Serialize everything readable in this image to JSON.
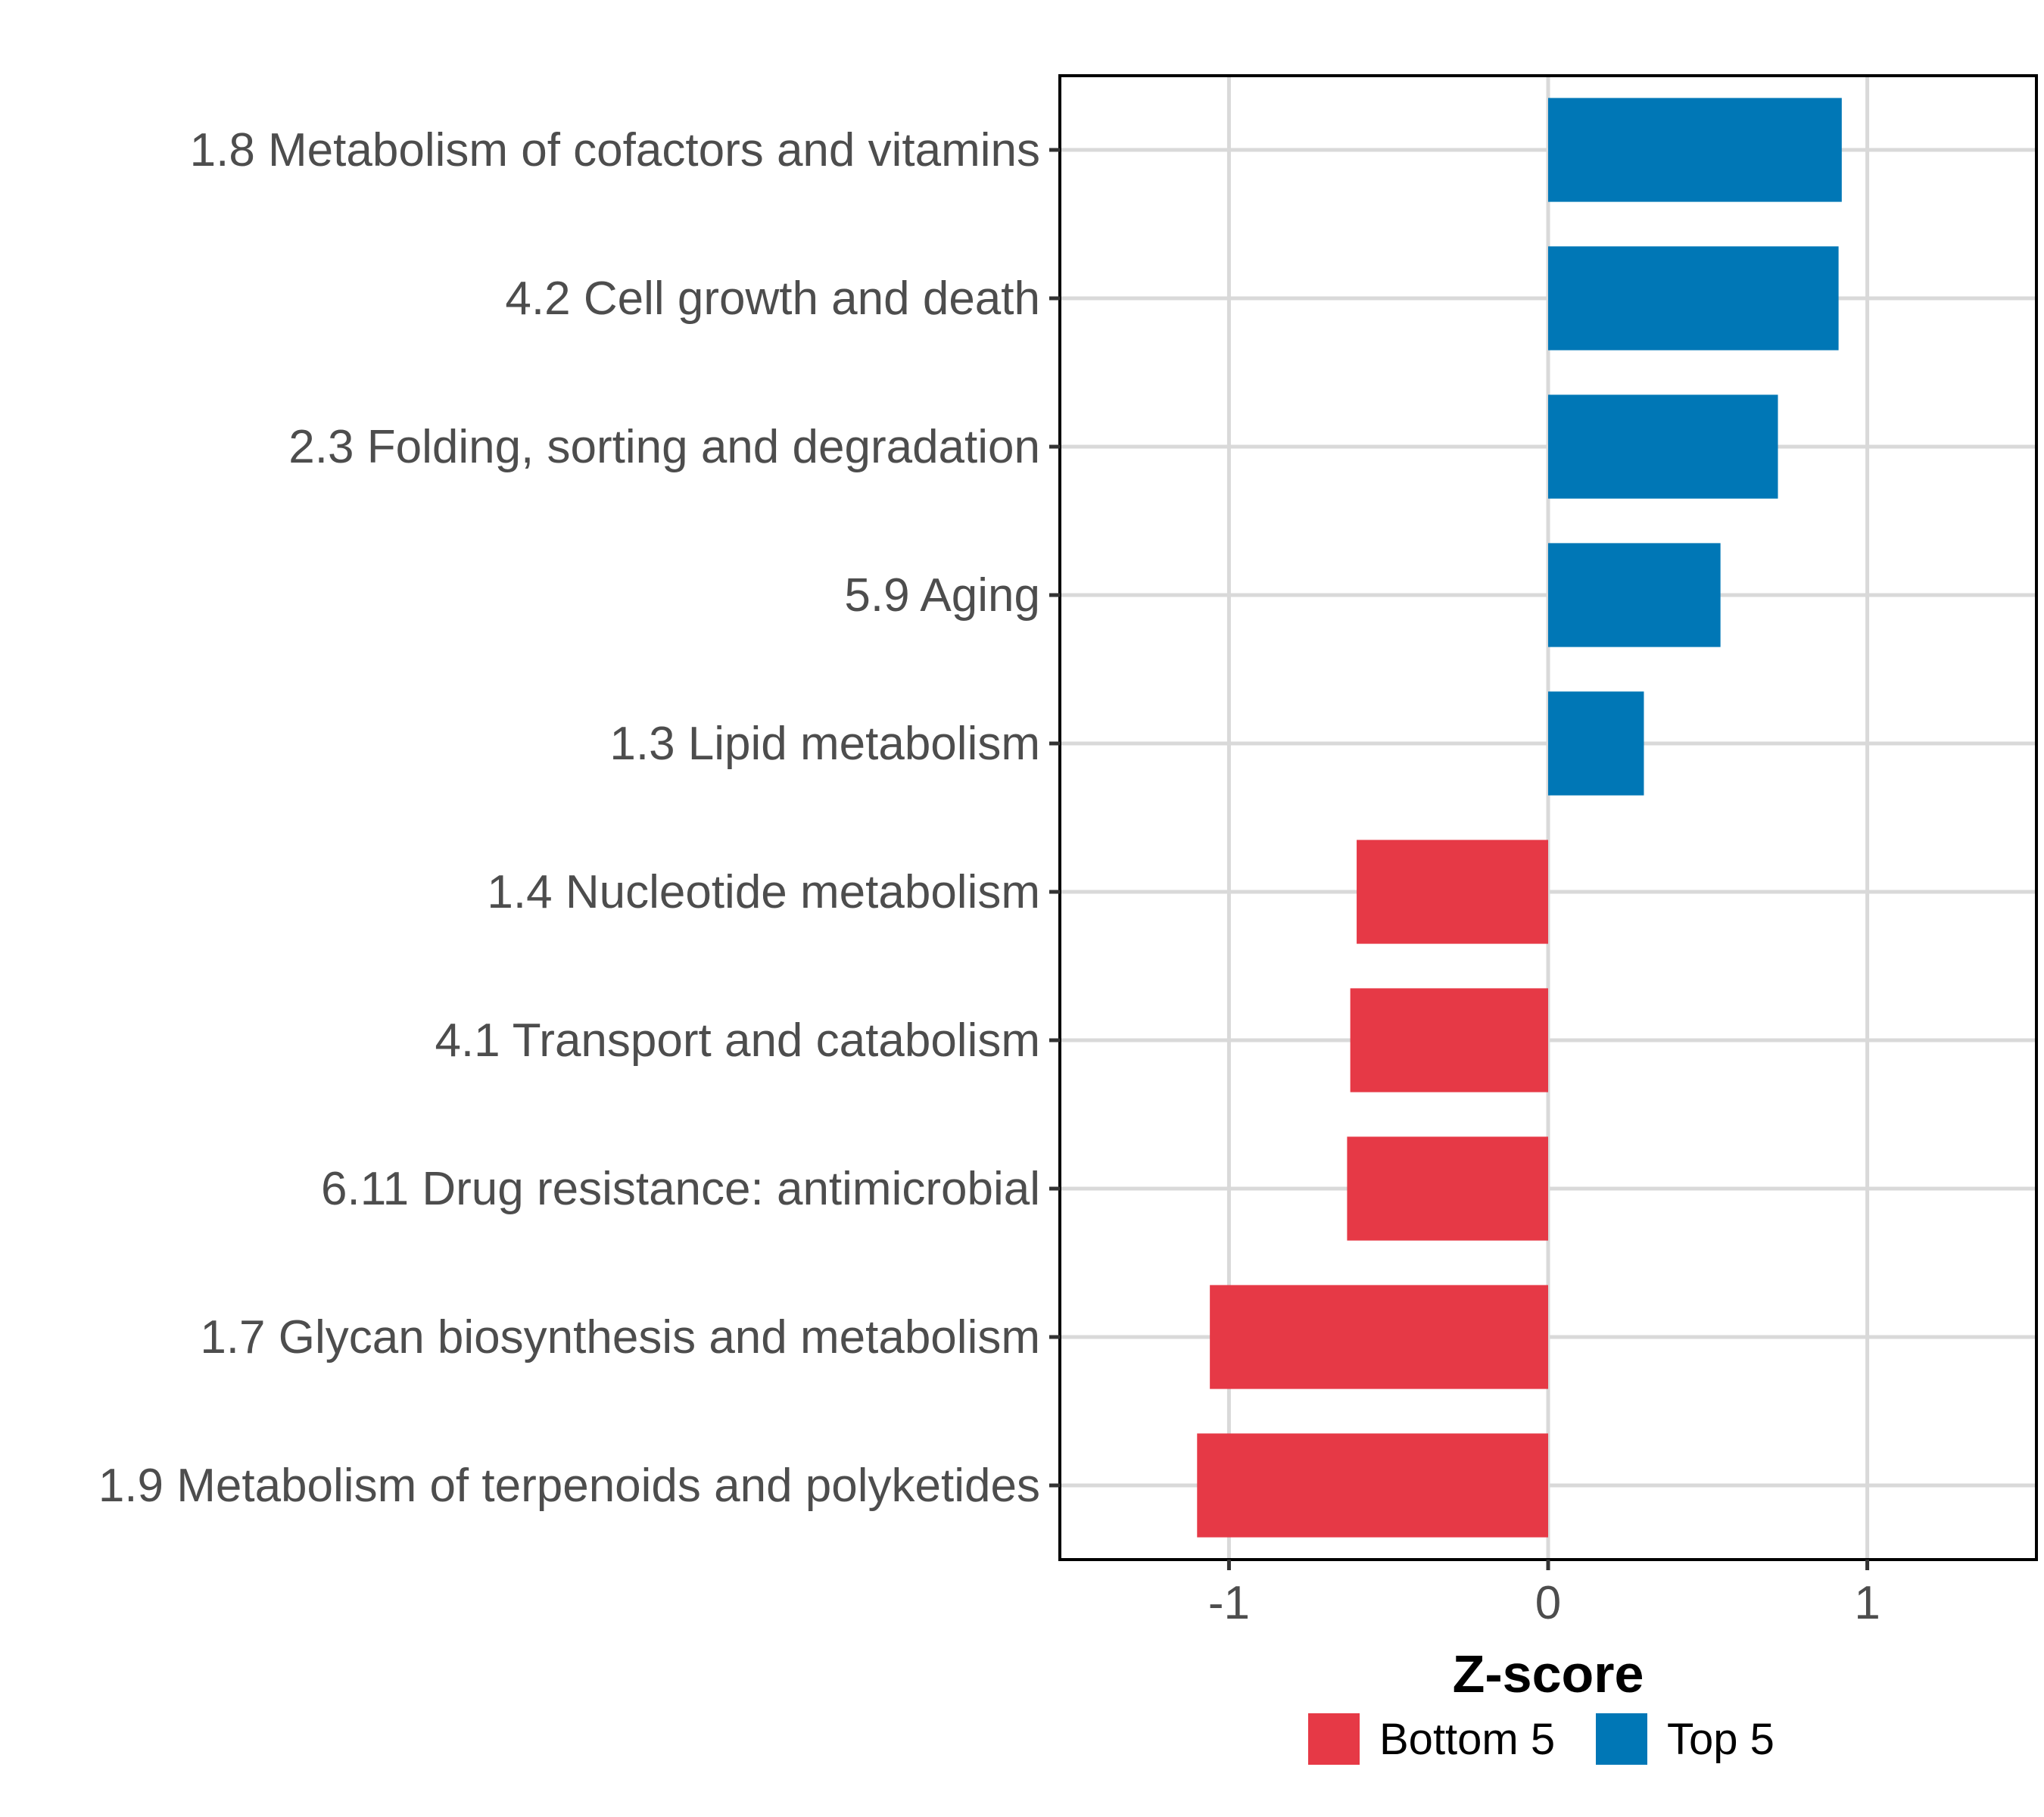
{
  "chart_data": {
    "type": "bar",
    "orientation": "horizontal",
    "categories": [
      "1.8 Metabolism of cofactors and vitamins",
      "4.2 Cell growth and death",
      "2.3 Folding, sorting and degradation",
      "5.9 Aging",
      "1.3 Lipid metabolism",
      "1.4 Nucleotide metabolism",
      "4.1 Transport and catabolism",
      "6.11 Drug resistance: antimicrobial",
      "1.7 Glycan biosynthesis and metabolism",
      "1.9 Metabolism of terpenoids and polyketides"
    ],
    "values": [
      0.92,
      0.91,
      0.72,
      0.54,
      0.3,
      -0.6,
      -0.62,
      -0.63,
      -1.06,
      -1.1
    ],
    "groups": [
      "Top 5",
      "Top 5",
      "Top 5",
      "Top 5",
      "Top 5",
      "Bottom 5",
      "Bottom 5",
      "Bottom 5",
      "Bottom 5",
      "Bottom 5"
    ],
    "xlabel": "Z-score",
    "ylabel": "",
    "xlim": [
      -1.53,
      1.53
    ],
    "xticks": [
      -1,
      0,
      1
    ],
    "xtick_labels": [
      "-1",
      "0",
      "1"
    ],
    "grid": true,
    "legend": {
      "position": "bottom",
      "entries": [
        {
          "label": "Bottom 5",
          "color": "#e63946"
        },
        {
          "label": "Top 5",
          "color": "#0077b6"
        }
      ]
    },
    "colors": {
      "Top 5": "#0077b6",
      "Bottom 5": "#e63946"
    }
  }
}
